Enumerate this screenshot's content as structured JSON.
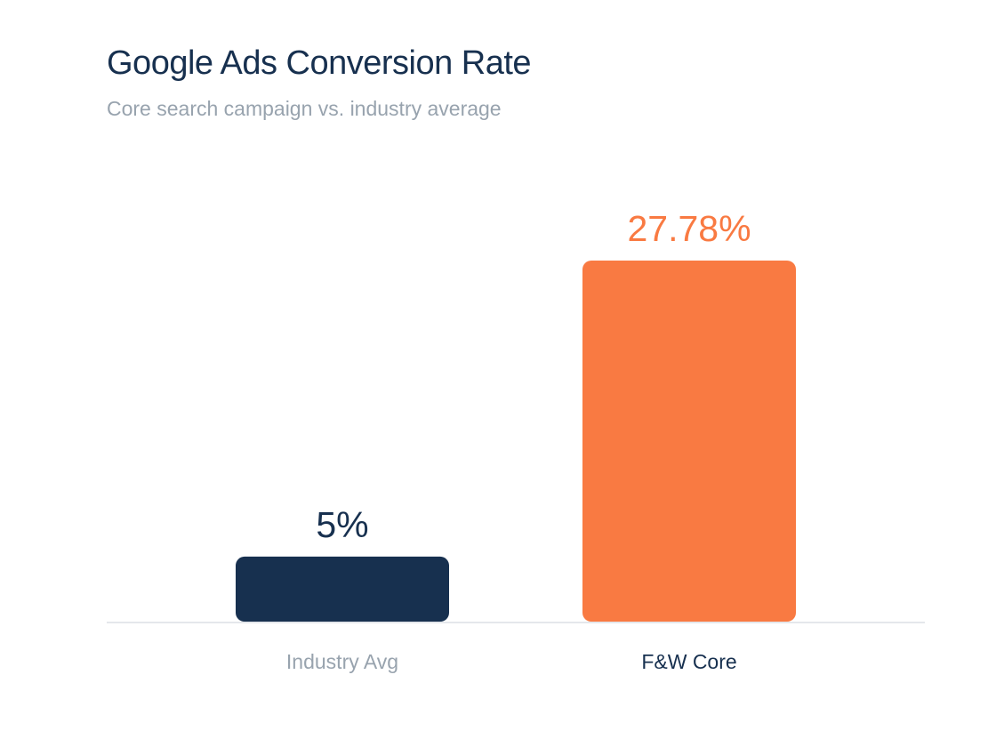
{
  "chart_data": {
    "type": "bar",
    "title": "Google Ads Conversion Rate",
    "subtitle": "Core search campaign vs. industry average",
    "categories": [
      "Industry Avg",
      "F&W Core"
    ],
    "values": [
      5,
      27.78
    ],
    "value_labels": [
      "5%",
      "27.78%"
    ],
    "bar_colors": [
      "#17304f",
      "#f97a42"
    ],
    "value_label_colors": [
      "#17304f",
      "#f97a42"
    ],
    "category_label_colors": [
      "#98a3ae",
      "#17304f"
    ],
    "xlabel": "",
    "ylabel": "",
    "ylim": [
      0,
      27.78
    ],
    "grid": false,
    "legend": "none",
    "baseline_color": "#e4e7eb"
  }
}
